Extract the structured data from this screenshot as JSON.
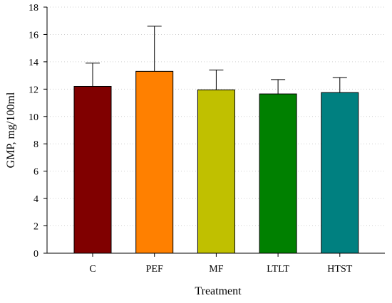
{
  "chart_data": {
    "type": "bar",
    "categories": [
      "C",
      "PEF",
      "MF",
      "LTLT",
      "HTST"
    ],
    "values": [
      12.2,
      13.3,
      11.95,
      11.65,
      11.75
    ],
    "error_upper": [
      1.7,
      3.3,
      1.45,
      1.05,
      1.1
    ],
    "colors": [
      "#800000",
      "#ff8000",
      "#c0c000",
      "#008000",
      "#008080"
    ],
    "xlabel": "Treatment",
    "ylabel": "GMP, mg/100ml",
    "ylim": [
      0,
      18
    ],
    "yticks": [
      0,
      2,
      4,
      6,
      8,
      10,
      12,
      14,
      16,
      18
    ],
    "grid": true,
    "legend": "none"
  }
}
